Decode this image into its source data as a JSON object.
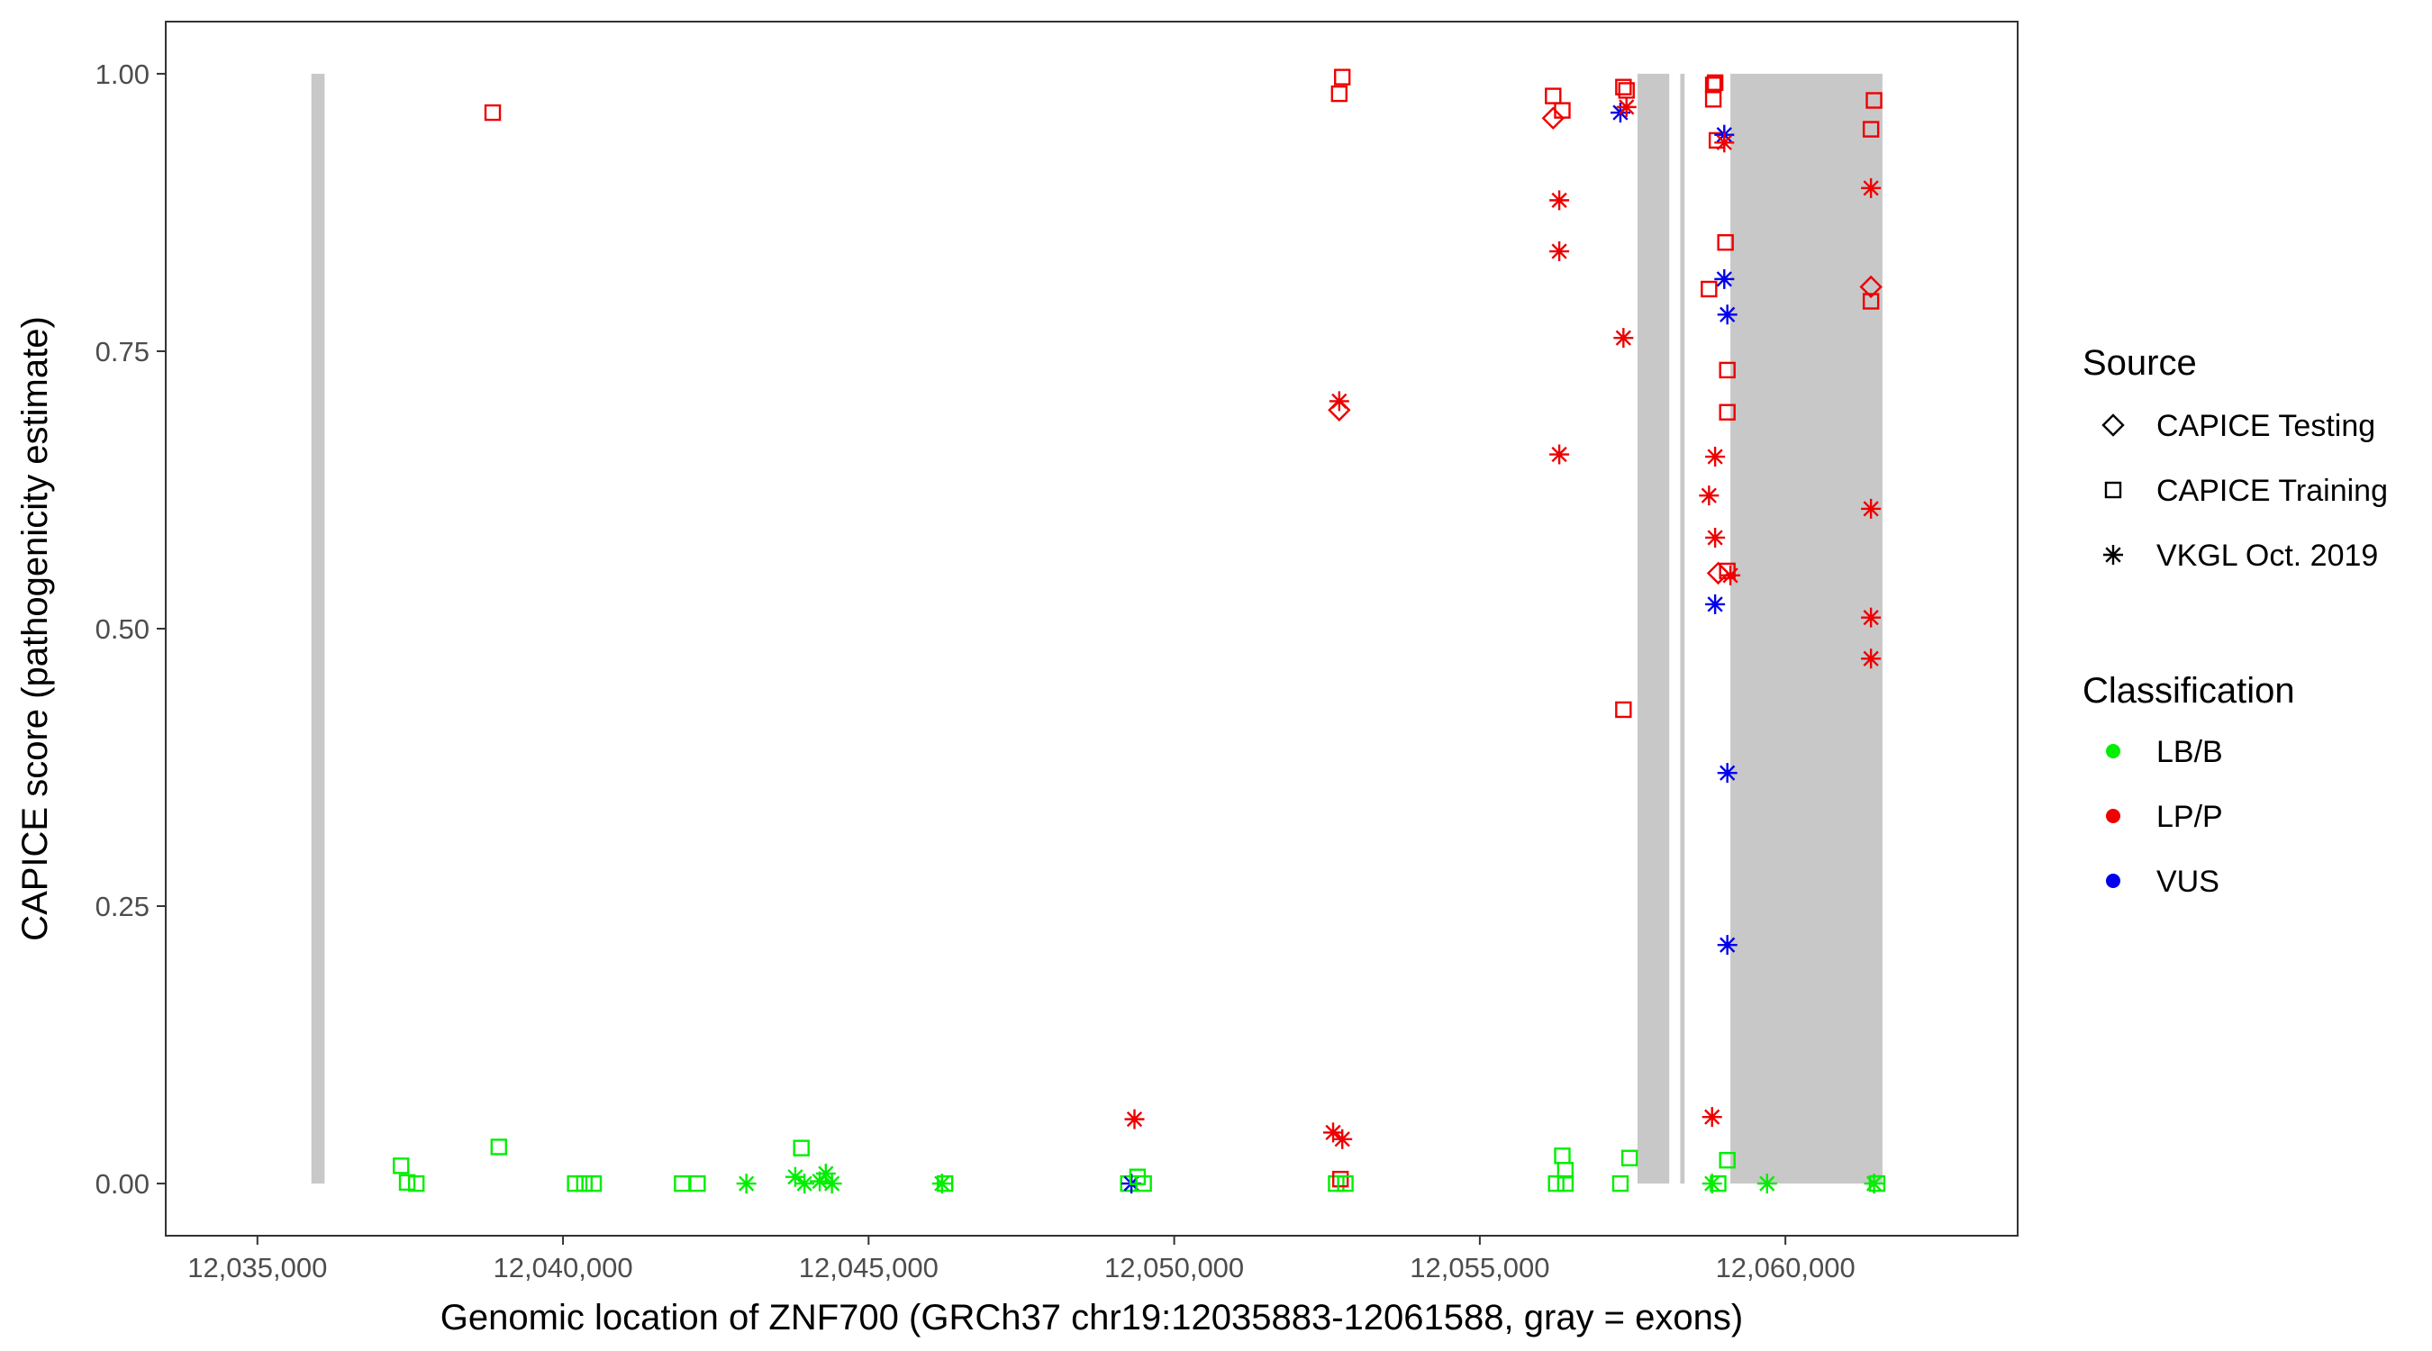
{
  "chart_data": {
    "type": "scatter",
    "xlabel": "Genomic location of ZNF700 (GRCh37 chr19:12035883-12061588, gray = exons)",
    "ylabel": "CAPICE score (pathogenicity estimate)",
    "xlim": [
      12033500,
      12063800
    ],
    "ylim": [
      -0.047,
      1.047
    ],
    "x_ticks": [
      12035000,
      12040000,
      12045000,
      12050000,
      12055000,
      12060000
    ],
    "x_tick_labels": [
      "12,035,000",
      "12,040,000",
      "12,045,000",
      "12,050,000",
      "12,055,000",
      "12,060,000"
    ],
    "y_ticks": [
      0,
      0.25,
      0.5,
      0.75,
      1
    ],
    "y_tick_labels": [
      "0.00",
      "0.25",
      "0.50",
      "0.75",
      "1.00"
    ],
    "grid": false,
    "exons": [
      [
        12035883,
        12036100
      ],
      [
        12057580,
        12058100
      ],
      [
        12058280,
        12058350
      ],
      [
        12059100,
        12061588
      ]
    ],
    "exon_color": "#c8c8c8",
    "legends": {
      "source_title": "Source",
      "source_items": [
        "CAPICE Testing",
        "CAPICE Training",
        "VKGL Oct. 2019"
      ],
      "classification_title": "Classification",
      "classification_items": [
        "LB/B",
        "LP/P",
        "VUS"
      ],
      "placement": "right"
    },
    "colors": {
      "LB/B": "#00ee00",
      "LP/P": "#ee0000",
      "VUS": "#0000ee"
    },
    "points": [
      {
        "x": 12037350,
        "y": 0.016,
        "source": "CAPICE Training",
        "class": "LB/B"
      },
      {
        "x": 12037450,
        "y": 0.001,
        "source": "CAPICE Training",
        "class": "LB/B"
      },
      {
        "x": 12037600,
        "y": 0.0,
        "source": "CAPICE Training",
        "class": "LB/B"
      },
      {
        "x": 12038850,
        "y": 0.965,
        "source": "CAPICE Training",
        "class": "LP/P"
      },
      {
        "x": 12038950,
        "y": 0.033,
        "source": "CAPICE Training",
        "class": "LB/B"
      },
      {
        "x": 12040200,
        "y": 0.0,
        "source": "CAPICE Training",
        "class": "LB/B"
      },
      {
        "x": 12040350,
        "y": 0.0,
        "source": "CAPICE Training",
        "class": "LB/B"
      },
      {
        "x": 12040500,
        "y": 0.0,
        "source": "CAPICE Training",
        "class": "LB/B"
      },
      {
        "x": 12041950,
        "y": 0.0,
        "source": "CAPICE Training",
        "class": "LB/B"
      },
      {
        "x": 12042200,
        "y": 0.0,
        "source": "CAPICE Training",
        "class": "LB/B"
      },
      {
        "x": 12043000,
        "y": 0.0,
        "source": "VKGL Oct. 2019",
        "class": "LB/B"
      },
      {
        "x": 12043800,
        "y": 0.006,
        "source": "VKGL Oct. 2019",
        "class": "LB/B"
      },
      {
        "x": 12043900,
        "y": 0.032,
        "source": "CAPICE Training",
        "class": "LB/B"
      },
      {
        "x": 12043950,
        "y": 0.0,
        "source": "VKGL Oct. 2019",
        "class": "LB/B"
      },
      {
        "x": 12044200,
        "y": 0.002,
        "source": "VKGL Oct. 2019",
        "class": "LB/B"
      },
      {
        "x": 12044300,
        "y": 0.009,
        "source": "VKGL Oct. 2019",
        "class": "LB/B"
      },
      {
        "x": 12044400,
        "y": 0.0,
        "source": "VKGL Oct. 2019",
        "class": "LB/B"
      },
      {
        "x": 12046200,
        "y": 0.0,
        "source": "VKGL Oct. 2019",
        "class": "LB/B"
      },
      {
        "x": 12046250,
        "y": 0.0,
        "source": "CAPICE Training",
        "class": "LB/B"
      },
      {
        "x": 12049250,
        "y": 0.0,
        "source": "CAPICE Training",
        "class": "LB/B"
      },
      {
        "x": 12049300,
        "y": 0.0,
        "source": "VKGL Oct. 2019",
        "class": "VUS"
      },
      {
        "x": 12049350,
        "y": 0.058,
        "source": "VKGL Oct. 2019",
        "class": "LP/P"
      },
      {
        "x": 12049400,
        "y": 0.006,
        "source": "CAPICE Training",
        "class": "LB/B"
      },
      {
        "x": 12049500,
        "y": 0.0,
        "source": "CAPICE Training",
        "class": "LB/B"
      },
      {
        "x": 12052600,
        "y": 0.046,
        "source": "VKGL Oct. 2019",
        "class": "LP/P"
      },
      {
        "x": 12052650,
        "y": 0.0,
        "source": "CAPICE Training",
        "class": "LB/B"
      },
      {
        "x": 12052700,
        "y": 0.982,
        "source": "CAPICE Training",
        "class": "LP/P"
      },
      {
        "x": 12052700,
        "y": 0.705,
        "source": "VKGL Oct. 2019",
        "class": "LP/P"
      },
      {
        "x": 12052700,
        "y": 0.697,
        "source": "CAPICE Testing",
        "class": "LP/P"
      },
      {
        "x": 12052720,
        "y": 0.004,
        "source": "CAPICE Training",
        "class": "LP/P"
      },
      {
        "x": 12052750,
        "y": 0.997,
        "source": "CAPICE Training",
        "class": "LP/P"
      },
      {
        "x": 12052750,
        "y": 0.04,
        "source": "VKGL Oct. 2019",
        "class": "LP/P"
      },
      {
        "x": 12052800,
        "y": 0.0,
        "source": "CAPICE Training",
        "class": "LB/B"
      },
      {
        "x": 12056200,
        "y": 0.98,
        "source": "CAPICE Training",
        "class": "LP/P"
      },
      {
        "x": 12056200,
        "y": 0.96,
        "source": "CAPICE Testing",
        "class": "LP/P"
      },
      {
        "x": 12056250,
        "y": 0.0,
        "source": "CAPICE Training",
        "class": "LB/B"
      },
      {
        "x": 12056300,
        "y": 0.886,
        "source": "VKGL Oct. 2019",
        "class": "LP/P"
      },
      {
        "x": 12056300,
        "y": 0.84,
        "source": "VKGL Oct. 2019",
        "class": "LP/P"
      },
      {
        "x": 12056300,
        "y": 0.657,
        "source": "VKGL Oct. 2019",
        "class": "LP/P"
      },
      {
        "x": 12056350,
        "y": 0.967,
        "source": "CAPICE Training",
        "class": "LP/P"
      },
      {
        "x": 12056350,
        "y": 0.025,
        "source": "CAPICE Training",
        "class": "LB/B"
      },
      {
        "x": 12056400,
        "y": 0.012,
        "source": "CAPICE Training",
        "class": "LB/B"
      },
      {
        "x": 12056400,
        "y": 0.0,
        "source": "CAPICE Training",
        "class": "LB/B"
      },
      {
        "x": 12057300,
        "y": 0.965,
        "source": "VKGL Oct. 2019",
        "class": "VUS"
      },
      {
        "x": 12057350,
        "y": 0.988,
        "source": "CAPICE Training",
        "class": "LP/P"
      },
      {
        "x": 12057350,
        "y": 0.762,
        "source": "VKGL Oct. 2019",
        "class": "LP/P"
      },
      {
        "x": 12057350,
        "y": 0.427,
        "source": "CAPICE Training",
        "class": "LP/P"
      },
      {
        "x": 12057300,
        "y": 0.0,
        "source": "CAPICE Training",
        "class": "LB/B"
      },
      {
        "x": 12057400,
        "y": 0.985,
        "source": "CAPICE Training",
        "class": "LP/P"
      },
      {
        "x": 12057400,
        "y": 0.97,
        "source": "VKGL Oct. 2019",
        "class": "LP/P"
      },
      {
        "x": 12057450,
        "y": 0.023,
        "source": "CAPICE Training",
        "class": "LB/B"
      },
      {
        "x": 12058750,
        "y": 0.806,
        "source": "CAPICE Training",
        "class": "LP/P"
      },
      {
        "x": 12058750,
        "y": 0.62,
        "source": "VKGL Oct. 2019",
        "class": "LP/P"
      },
      {
        "x": 12058800,
        "y": 0.06,
        "source": "VKGL Oct. 2019",
        "class": "LP/P"
      },
      {
        "x": 12058800,
        "y": 0.0,
        "source": "VKGL Oct. 2019",
        "class": "LB/B"
      },
      {
        "x": 12058820,
        "y": 0.99,
        "source": "CAPICE Training",
        "class": "LP/P"
      },
      {
        "x": 12058820,
        "y": 0.977,
        "source": "CAPICE Training",
        "class": "LP/P"
      },
      {
        "x": 12058850,
        "y": 0.992,
        "source": "CAPICE Training",
        "class": "LP/P"
      },
      {
        "x": 12058850,
        "y": 0.655,
        "source": "VKGL Oct. 2019",
        "class": "LP/P"
      },
      {
        "x": 12058850,
        "y": 0.582,
        "source": "VKGL Oct. 2019",
        "class": "LP/P"
      },
      {
        "x": 12058850,
        "y": 0.522,
        "source": "VKGL Oct. 2019",
        "class": "VUS"
      },
      {
        "x": 12058880,
        "y": 0.94,
        "source": "CAPICE Training",
        "class": "LP/P"
      },
      {
        "x": 12058900,
        "y": 0.55,
        "source": "CAPICE Testing",
        "class": "LP/P"
      },
      {
        "x": 12058900,
        "y": 0.0,
        "source": "CAPICE Training",
        "class": "LB/B"
      },
      {
        "x": 12059000,
        "y": 0.945,
        "source": "VKGL Oct. 2019",
        "class": "VUS"
      },
      {
        "x": 12059000,
        "y": 0.938,
        "source": "VKGL Oct. 2019",
        "class": "LP/P"
      },
      {
        "x": 12059000,
        "y": 0.815,
        "source": "VKGL Oct. 2019",
        "class": "VUS"
      },
      {
        "x": 12059020,
        "y": 0.848,
        "source": "CAPICE Training",
        "class": "LP/P"
      },
      {
        "x": 12059050,
        "y": 0.783,
        "source": "VKGL Oct. 2019",
        "class": "VUS"
      },
      {
        "x": 12059050,
        "y": 0.733,
        "source": "CAPICE Training",
        "class": "LP/P"
      },
      {
        "x": 12059050,
        "y": 0.695,
        "source": "CAPICE Training",
        "class": "LP/P"
      },
      {
        "x": 12059050,
        "y": 0.552,
        "source": "CAPICE Training",
        "class": "LP/P"
      },
      {
        "x": 12059050,
        "y": 0.37,
        "source": "VKGL Oct. 2019",
        "class": "VUS"
      },
      {
        "x": 12059050,
        "y": 0.215,
        "source": "VKGL Oct. 2019",
        "class": "VUS"
      },
      {
        "x": 12059050,
        "y": 0.021,
        "source": "CAPICE Training",
        "class": "LB/B"
      },
      {
        "x": 12059100,
        "y": 0.548,
        "source": "VKGL Oct. 2019",
        "class": "LP/P"
      },
      {
        "x": 12059700,
        "y": 0.0,
        "source": "VKGL Oct. 2019",
        "class": "LB/B"
      },
      {
        "x": 12061400,
        "y": 0.95,
        "source": "CAPICE Training",
        "class": "LP/P"
      },
      {
        "x": 12061400,
        "y": 0.897,
        "source": "VKGL Oct. 2019",
        "class": "LP/P"
      },
      {
        "x": 12061400,
        "y": 0.808,
        "source": "CAPICE Testing",
        "class": "LP/P"
      },
      {
        "x": 12061400,
        "y": 0.795,
        "source": "CAPICE Training",
        "class": "LP/P"
      },
      {
        "x": 12061400,
        "y": 0.608,
        "source": "VKGL Oct. 2019",
        "class": "LP/P"
      },
      {
        "x": 12061400,
        "y": 0.51,
        "source": "VKGL Oct. 2019",
        "class": "LP/P"
      },
      {
        "x": 12061400,
        "y": 0.473,
        "source": "VKGL Oct. 2019",
        "class": "LP/P"
      },
      {
        "x": 12061450,
        "y": 0.976,
        "source": "CAPICE Training",
        "class": "LP/P"
      },
      {
        "x": 12061450,
        "y": 0.0,
        "source": "VKGL Oct. 2019",
        "class": "LB/B"
      },
      {
        "x": 12061500,
        "y": 0.0,
        "source": "CAPICE Training",
        "class": "LB/B"
      }
    ]
  }
}
